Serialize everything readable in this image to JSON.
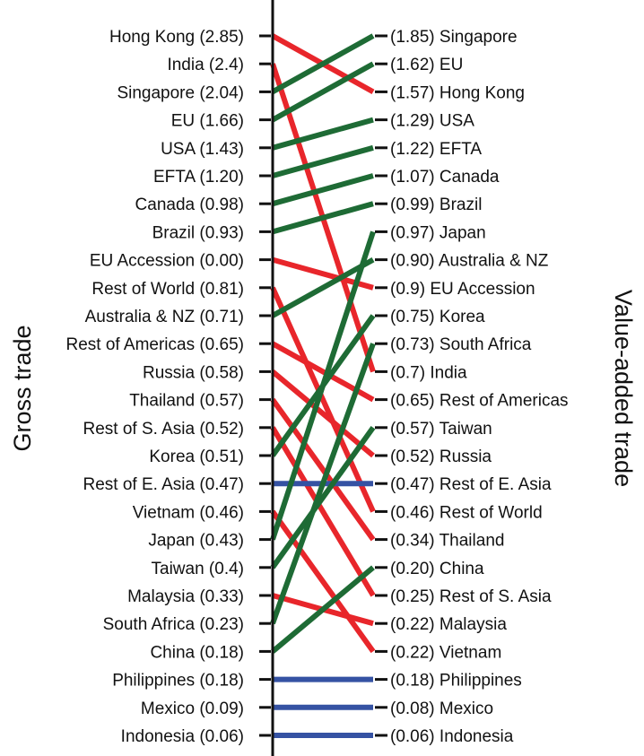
{
  "chart_data": {
    "type": "slope",
    "left_axis_label": "Gross trade",
    "right_axis_label": "Value-added trade",
    "colors": {
      "up": "#1e6b35",
      "down": "#e8262b",
      "same": "#3552a3",
      "axis": "#111111"
    },
    "left": [
      {
        "name": "Hong Kong",
        "label": "Hong Kong (2.85)",
        "value": 2.85
      },
      {
        "name": "India",
        "label": "India (2.4)",
        "value": 2.4
      },
      {
        "name": "Singapore",
        "label": "Singapore (2.04)",
        "value": 2.04
      },
      {
        "name": "EU",
        "label": "EU (1.66)",
        "value": 1.66
      },
      {
        "name": "USA",
        "label": "USA (1.43)",
        "value": 1.43
      },
      {
        "name": "EFTA",
        "label": "EFTA (1.20)",
        "value": 1.2
      },
      {
        "name": "Canada",
        "label": "Canada (0.98)",
        "value": 0.98
      },
      {
        "name": "Brazil",
        "label": "Brazil (0.93)",
        "value": 0.93
      },
      {
        "name": "EU Accession",
        "label": "EU Accession (0.00)",
        "value": 0.0
      },
      {
        "name": "Rest of World",
        "label": "Rest of World (0.81)",
        "value": 0.81
      },
      {
        "name": "Australia & NZ",
        "label": "Australia & NZ (0.71)",
        "value": 0.71
      },
      {
        "name": "Rest of Americas",
        "label": "Rest of Americas (0.65)",
        "value": 0.65
      },
      {
        "name": "Russia",
        "label": "Russia (0.58)",
        "value": 0.58
      },
      {
        "name": "Thailand",
        "label": "Thailand (0.57)",
        "value": 0.57
      },
      {
        "name": "Rest of S. Asia",
        "label": "Rest of S. Asia (0.52)",
        "value": 0.52
      },
      {
        "name": "Korea",
        "label": "Korea (0.51)",
        "value": 0.51
      },
      {
        "name": "Rest of E. Asia",
        "label": "Rest of E. Asia (0.47)",
        "value": 0.47
      },
      {
        "name": "Vietnam",
        "label": "Vietnam (0.46)",
        "value": 0.46
      },
      {
        "name": "Japan",
        "label": "Japan (0.43)",
        "value": 0.43
      },
      {
        "name": "Taiwan",
        "label": "Taiwan (0.4)",
        "value": 0.4
      },
      {
        "name": "Malaysia",
        "label": "Malaysia (0.33)",
        "value": 0.33
      },
      {
        "name": "South Africa",
        "label": "South Africa (0.23)",
        "value": 0.23
      },
      {
        "name": "China",
        "label": "China (0.18)",
        "value": 0.18
      },
      {
        "name": "Philippines",
        "label": "Philippines (0.18)",
        "value": 0.18
      },
      {
        "name": "Mexico",
        "label": "Mexico  (0.09)",
        "value": 0.09
      },
      {
        "name": "Indonesia",
        "label": "Indonesia (0.06)",
        "value": 0.06
      }
    ],
    "right": [
      {
        "name": "Singapore",
        "label": "(1.85) Singapore",
        "value": 1.85
      },
      {
        "name": "EU",
        "label": "(1.62) EU",
        "value": 1.62
      },
      {
        "name": "Hong Kong",
        "label": "(1.57) Hong Kong",
        "value": 1.57
      },
      {
        "name": "USA",
        "label": "(1.29) USA",
        "value": 1.29
      },
      {
        "name": "EFTA",
        "label": "(1.22) EFTA",
        "value": 1.22
      },
      {
        "name": "Canada",
        "label": "(1.07) Canada",
        "value": 1.07
      },
      {
        "name": "Brazil",
        "label": "(0.99) Brazil",
        "value": 0.99
      },
      {
        "name": "Japan",
        "label": "(0.97) Japan",
        "value": 0.97
      },
      {
        "name": "Australia & NZ",
        "label": "(0.90) Australia & NZ",
        "value": 0.9
      },
      {
        "name": "EU Accession",
        "label": "(0.9) EU Accession",
        "value": 0.9
      },
      {
        "name": "Korea",
        "label": "(0.75) Korea",
        "value": 0.75
      },
      {
        "name": "South Africa",
        "label": "(0.73) South Africa",
        "value": 0.73
      },
      {
        "name": "India",
        "label": "(0.7) India",
        "value": 0.7
      },
      {
        "name": "Rest of Americas",
        "label": "(0.65) Rest of Americas",
        "value": 0.65
      },
      {
        "name": "Taiwan",
        "label": "(0.57) Taiwan",
        "value": 0.57
      },
      {
        "name": "Russia",
        "label": "(0.52) Russia",
        "value": 0.52
      },
      {
        "name": "Rest of E. Asia",
        "label": "(0.47) Rest of E. Asia",
        "value": 0.47
      },
      {
        "name": "Rest of World",
        "label": "(0.46) Rest of World",
        "value": 0.46
      },
      {
        "name": "Thailand",
        "label": "(0.34) Thailand",
        "value": 0.34
      },
      {
        "name": "China",
        "label": "(0.20) China",
        "value": 0.2
      },
      {
        "name": "Rest of S. Asia",
        "label": "(0.25) Rest of S. Asia",
        "value": 0.25
      },
      {
        "name": "Malaysia",
        "label": "(0.22) Malaysia",
        "value": 0.22
      },
      {
        "name": "Vietnam",
        "label": "(0.22) Vietnam",
        "value": 0.22
      },
      {
        "name": "Philippines",
        "label": "(0.18) Philippines",
        "value": 0.18
      },
      {
        "name": "Mexico",
        "label": "(0.08) Mexico",
        "value": 0.08
      },
      {
        "name": "Indonesia",
        "label": "(0.06) Indonesia",
        "value": 0.06
      }
    ]
  }
}
